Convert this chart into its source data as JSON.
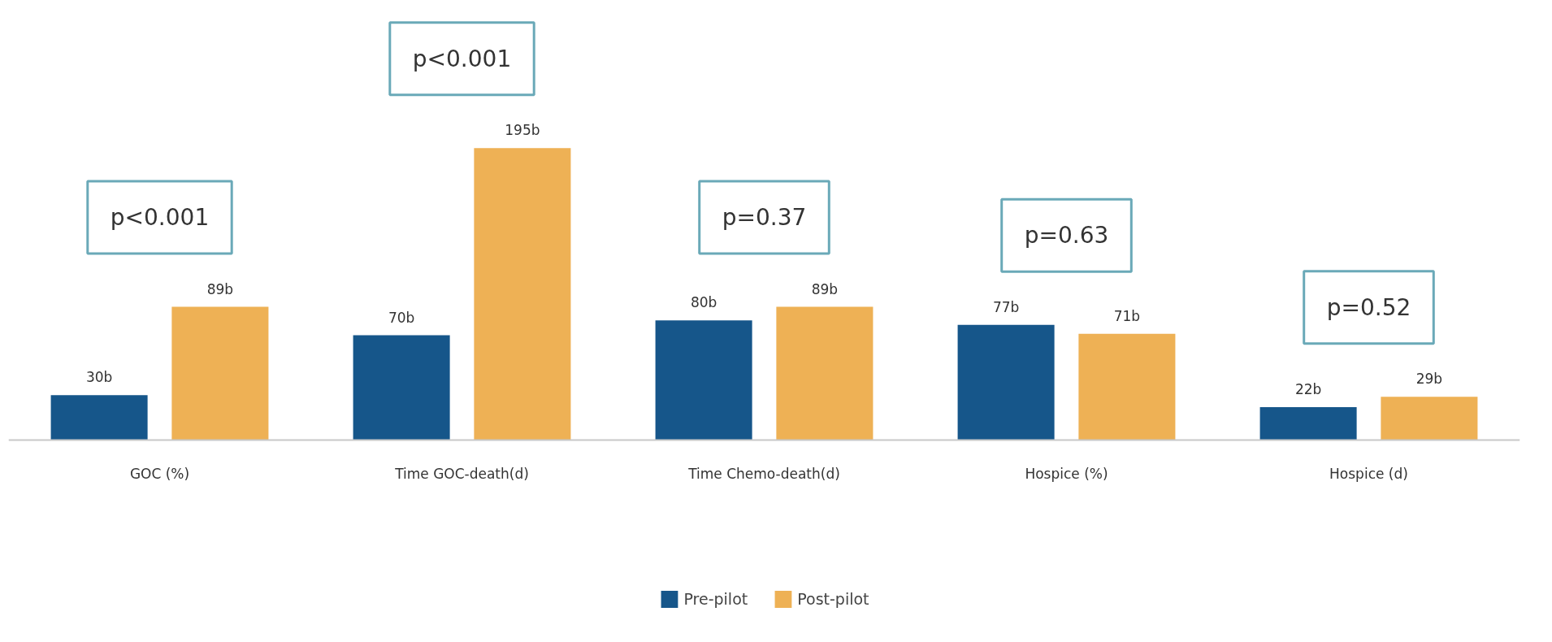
{
  "chart_data": {
    "type": "bar",
    "categories": [
      "GOC (%)",
      "Time GOC-death(d)",
      "Time Chemo-death(d)",
      "Hospice (%)",
      "Hospice (d)"
    ],
    "series": [
      {
        "name": "Pre-pilot",
        "color": "#16568a",
        "values": [
          30,
          70,
          80,
          77,
          22
        ],
        "value_labels": [
          "30b",
          "70b",
          "80b",
          "77b",
          "22b"
        ]
      },
      {
        "name": "Post-pilot",
        "color": "#eeb155",
        "values": [
          89,
          195,
          89,
          71,
          29
        ],
        "value_labels": [
          "89b",
          "195b",
          "89b",
          "71b",
          "29b"
        ]
      }
    ],
    "annotations": [
      "p<0.001",
      "p<0.001",
      "p=0.37",
      "p=0.63",
      "p=0.52"
    ],
    "grid": false,
    "legend": "bottom"
  }
}
